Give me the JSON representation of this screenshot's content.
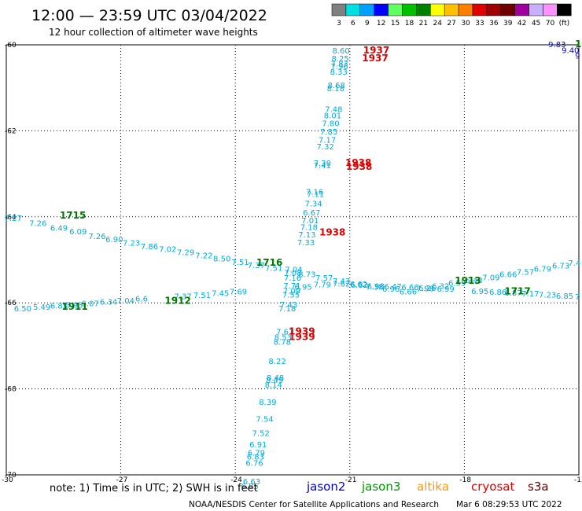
{
  "header": {
    "title": "12:00 — 23:59 UTC 03/04/2022",
    "subtitle": "12 hour collection of altimeter wave heights"
  },
  "colorbar": {
    "labels": [
      "3",
      "6",
      "9",
      "12",
      "15",
      "18",
      "21",
      "24",
      "27",
      "30",
      "33",
      "36",
      "39",
      "42",
      "45",
      "70",
      "(ft)"
    ],
    "colors": [
      "#808080",
      "#00e0e0",
      "#00a0ff",
      "#0000ff",
      "#60ff60",
      "#00c000",
      "#008000",
      "#ffff00",
      "#ffc000",
      "#ff8000",
      "#e00000",
      "#a00000",
      "#700000",
      "#a000a0",
      "#c8b0ff",
      "#ff90ff",
      "#000000"
    ]
  },
  "legend": [
    {
      "label": "jason2",
      "color": "#0000cc"
    },
    {
      "label": "jason3",
      "color": "#009900"
    },
    {
      "label": "altika",
      "color": "#ff9900"
    },
    {
      "label": "cryosat",
      "color": "#dd0000"
    },
    {
      "label": "s3a",
      "color": "#660000"
    }
  ],
  "note": "note: 1) Time is in UTC; 2) SWH is in feet",
  "footer": {
    "credit": "NOAA/NESDIS Center for Satellite Applications and Research",
    "timestamp": "Mar  6 08:29:53 UTC 2022"
  },
  "chart_data": {
    "type": "scatter",
    "xlim": [
      -30,
      -15
    ],
    "ylim": [
      -70,
      -60
    ],
    "x_ticks": [
      -30,
      -27,
      -24,
      -21,
      -18,
      -15
    ],
    "x_tick_labels": [
      "-30",
      "-27",
      "-24",
      "-21",
      "-18",
      "-15"
    ],
    "y_ticks": [
      -60,
      -62,
      -64,
      -66,
      -68,
      -70
    ],
    "y_tick_labels": [
      "-60",
      "-62",
      "-64",
      "-66",
      "-68",
      "-70"
    ],
    "grid": true,
    "colors": {
      "cyan": "#00aadd",
      "blue": "#0000cc",
      "green": "#007700",
      "red": "#dd0000"
    },
    "values": [
      {
        "lon": -21.46,
        "lat": -60.13,
        "t": "8.60",
        "c": "cyan"
      },
      {
        "lon": -21.48,
        "lat": -60.31,
        "t": "8.25",
        "c": "cyan"
      },
      {
        "lon": -21.5,
        "lat": -60.43,
        "t": "7.83",
        "c": "cyan"
      },
      {
        "lon": -21.5,
        "lat": -60.49,
        "t": "7.96",
        "c": "cyan"
      },
      {
        "lon": -21.52,
        "lat": -60.62,
        "t": "8.33",
        "c": "cyan"
      },
      {
        "lon": -21.58,
        "lat": -60.93,
        "t": "8.68",
        "c": "cyan"
      },
      {
        "lon": -21.6,
        "lat": -61.01,
        "t": "8.18",
        "c": "cyan"
      },
      {
        "lon": -21.65,
        "lat": -61.49,
        "t": "7.48",
        "c": "cyan"
      },
      {
        "lon": -21.68,
        "lat": -61.64,
        "t": "8.01",
        "c": "cyan"
      },
      {
        "lon": -21.73,
        "lat": -61.82,
        "t": "7.80",
        "c": "cyan"
      },
      {
        "lon": -21.78,
        "lat": -62.01,
        "t": "7.85",
        "c": "cyan"
      },
      {
        "lon": -21.82,
        "lat": -62.2,
        "t": "7.17",
        "c": "cyan"
      },
      {
        "lon": -21.87,
        "lat": -62.36,
        "t": "7.32",
        "c": "cyan"
      },
      {
        "lon": -21.95,
        "lat": -62.74,
        "t": "7.30",
        "c": "cyan"
      },
      {
        "lon": -21.95,
        "lat": -62.8,
        "t": "7.41",
        "c": "cyan"
      },
      {
        "lon": -22.15,
        "lat": -63.41,
        "t": "7.16",
        "c": "cyan"
      },
      {
        "lon": -22.13,
        "lat": -63.46,
        "t": "7.11",
        "c": "cyan"
      },
      {
        "lon": -22.18,
        "lat": -63.68,
        "t": "7.34",
        "c": "cyan"
      },
      {
        "lon": -22.23,
        "lat": -63.89,
        "t": "6.67",
        "c": "cyan"
      },
      {
        "lon": -22.27,
        "lat": -64.08,
        "t": "7.01",
        "c": "cyan"
      },
      {
        "lon": -22.3,
        "lat": -64.23,
        "t": "7.18",
        "c": "cyan"
      },
      {
        "lon": -22.35,
        "lat": -64.41,
        "t": "7.13",
        "c": "cyan"
      },
      {
        "lon": -22.38,
        "lat": -64.59,
        "t": "7.33",
        "c": "cyan"
      },
      {
        "lon": -22.7,
        "lat": -65.22,
        "t": "7.04",
        "c": "cyan"
      },
      {
        "lon": -22.72,
        "lat": -65.29,
        "t": "7.08",
        "c": "cyan"
      },
      {
        "lon": -22.73,
        "lat": -65.41,
        "t": "7.16",
        "c": "cyan"
      },
      {
        "lon": -22.74,
        "lat": -65.59,
        "t": "7.71",
        "c": "cyan"
      },
      {
        "lon": -22.75,
        "lat": -65.71,
        "t": "7.09",
        "c": "cyan"
      },
      {
        "lon": -22.77,
        "lat": -65.8,
        "t": "7.55",
        "c": "cyan"
      },
      {
        "lon": -22.83,
        "lat": -66.03,
        "t": "7.43",
        "c": "cyan"
      },
      {
        "lon": -22.87,
        "lat": -66.12,
        "t": "7.18",
        "c": "cyan"
      },
      {
        "lon": -22.93,
        "lat": -66.66,
        "t": "7.61",
        "c": "cyan"
      },
      {
        "lon": -22.98,
        "lat": -66.79,
        "t": "8.53",
        "c": "cyan"
      },
      {
        "lon": -23.0,
        "lat": -66.9,
        "t": "8.78",
        "c": "cyan"
      },
      {
        "lon": -23.13,
        "lat": -67.35,
        "t": "8.22",
        "c": "cyan"
      },
      {
        "lon": -23.18,
        "lat": -67.73,
        "t": "8.48",
        "c": "cyan"
      },
      {
        "lon": -23.2,
        "lat": -67.79,
        "t": "8.49",
        "c": "cyan"
      },
      {
        "lon": -23.23,
        "lat": -67.9,
        "t": "8.14",
        "c": "cyan"
      },
      {
        "lon": -23.38,
        "lat": -68.3,
        "t": "8.39",
        "c": "cyan"
      },
      {
        "lon": -23.46,
        "lat": -68.69,
        "t": "7.54",
        "c": "cyan"
      },
      {
        "lon": -23.56,
        "lat": -69.02,
        "t": "7.52",
        "c": "cyan"
      },
      {
        "lon": -23.63,
        "lat": -69.29,
        "t": "6.91",
        "c": "cyan"
      },
      {
        "lon": -23.68,
        "lat": -69.48,
        "t": "6.79",
        "c": "cyan"
      },
      {
        "lon": -23.7,
        "lat": -69.57,
        "t": "6.83",
        "c": "cyan"
      },
      {
        "lon": -23.73,
        "lat": -69.72,
        "t": "6.76",
        "c": "cyan"
      },
      {
        "lon": -23.8,
        "lat": -70.15,
        "t": "6.63",
        "c": "cyan"
      },
      {
        "lon": -23.85,
        "lat": -70.26,
        "t": "6.85",
        "c": "cyan"
      },
      {
        "lon": -30.05,
        "lat": -64.02,
        "t": "7.27",
        "c": "cyan"
      },
      {
        "lon": -29.4,
        "lat": -64.14,
        "t": "7.26",
        "c": "cyan"
      },
      {
        "lon": -28.85,
        "lat": -64.25,
        "t": "6.49",
        "c": "cyan"
      },
      {
        "lon": -28.35,
        "lat": -64.33,
        "t": "6.09",
        "c": "cyan"
      },
      {
        "lon": -27.85,
        "lat": -64.44,
        "t": "7.26",
        "c": "cyan"
      },
      {
        "lon": -27.4,
        "lat": -64.52,
        "t": "6.90",
        "c": "cyan"
      },
      {
        "lon": -26.95,
        "lat": -64.6,
        "t": "7.23",
        "c": "cyan"
      },
      {
        "lon": -26.48,
        "lat": -64.68,
        "t": "7.86",
        "c": "cyan"
      },
      {
        "lon": -26.0,
        "lat": -64.74,
        "t": "7.02",
        "c": "cyan"
      },
      {
        "lon": -25.53,
        "lat": -64.82,
        "t": "7.29",
        "c": "cyan"
      },
      {
        "lon": -25.05,
        "lat": -64.89,
        "t": "7.22",
        "c": "cyan"
      },
      {
        "lon": -24.58,
        "lat": -64.96,
        "t": "8.50",
        "c": "cyan"
      },
      {
        "lon": -24.1,
        "lat": -65.05,
        "t": "7.51",
        "c": "cyan"
      },
      {
        "lon": -23.68,
        "lat": -65.12,
        "t": "7.37",
        "c": "cyan"
      },
      {
        "lon": -23.22,
        "lat": -65.18,
        "t": "7.51",
        "c": "cyan"
      },
      {
        "lon": -22.35,
        "lat": -65.33,
        "t": "8.73",
        "c": "cyan"
      },
      {
        "lon": -21.9,
        "lat": -65.41,
        "t": "7.57",
        "c": "cyan"
      },
      {
        "lon": -21.45,
        "lat": -65.48,
        "t": "7.43",
        "c": "cyan"
      },
      {
        "lon": -21.0,
        "lat": -65.56,
        "t": "6.62",
        "c": "cyan"
      },
      {
        "lon": -20.58,
        "lat": -65.62,
        "t": "7.38",
        "c": "cyan"
      },
      {
        "lon": -20.15,
        "lat": -65.67,
        "t": "6.96",
        "c": "cyan"
      },
      {
        "lon": -19.7,
        "lat": -65.73,
        "t": "6.66",
        "c": "cyan"
      },
      {
        "lon": -19.25,
        "lat": -65.66,
        "t": "7.98",
        "c": "cyan"
      },
      {
        "lon": -18.85,
        "lat": -65.6,
        "t": "6.32",
        "c": "cyan"
      },
      {
        "lon": -18.42,
        "lat": -65.53,
        "t": "6.59",
        "c": "cyan"
      },
      {
        "lon": -17.98,
        "lat": -65.47,
        "t": "6.48",
        "c": "cyan"
      },
      {
        "lon": -17.53,
        "lat": -65.4,
        "t": "7.09",
        "c": "cyan"
      },
      {
        "lon": -17.08,
        "lat": -65.33,
        "t": "6.66",
        "c": "cyan"
      },
      {
        "lon": -16.63,
        "lat": -65.27,
        "t": "7.57",
        "c": "cyan"
      },
      {
        "lon": -16.18,
        "lat": -65.2,
        "t": "6.79",
        "c": "cyan"
      },
      {
        "lon": -15.7,
        "lat": -65.13,
        "t": "6.73",
        "c": "cyan"
      },
      {
        "lon": -15.28,
        "lat": -65.06,
        "t": "7.4",
        "c": "cyan"
      },
      {
        "lon": -29.8,
        "lat": -66.12,
        "t": "6.50",
        "c": "cyan"
      },
      {
        "lon": -29.3,
        "lat": -66.09,
        "t": "5.49",
        "c": "cyan"
      },
      {
        "lon": -28.85,
        "lat": -66.06,
        "t": "6.85",
        "c": "cyan"
      },
      {
        "lon": -28.45,
        "lat": -66.04,
        "t": "5.93",
        "c": "cyan"
      },
      {
        "lon": -28.03,
        "lat": -66.01,
        "t": "6.07",
        "c": "cyan"
      },
      {
        "lon": -27.55,
        "lat": -65.97,
        "t": "6.34",
        "c": "cyan"
      },
      {
        "lon": -27.1,
        "lat": -65.94,
        "t": "7.04",
        "c": "cyan"
      },
      {
        "lon": -26.62,
        "lat": -65.9,
        "t": "6.6",
        "c": "cyan"
      },
      {
        "lon": -25.6,
        "lat": -65.84,
        "t": "7.37",
        "c": "cyan"
      },
      {
        "lon": -25.1,
        "lat": -65.81,
        "t": "7.51",
        "c": "cyan"
      },
      {
        "lon": -24.62,
        "lat": -65.77,
        "t": "7.45",
        "c": "cyan"
      },
      {
        "lon": -24.15,
        "lat": -65.73,
        "t": "7.69",
        "c": "cyan"
      },
      {
        "lon": -22.45,
        "lat": -65.62,
        "t": "6.95",
        "c": "cyan"
      },
      {
        "lon": -21.95,
        "lat": -65.57,
        "t": "7.79",
        "c": "cyan"
      },
      {
        "lon": -21.45,
        "lat": -65.55,
        "t": "7.62",
        "c": "cyan"
      },
      {
        "lon": -20.98,
        "lat": -65.58,
        "t": "6.82",
        "c": "cyan"
      },
      {
        "lon": -20.55,
        "lat": -65.6,
        "t": "6.98",
        "c": "cyan"
      },
      {
        "lon": -20.1,
        "lat": -65.61,
        "t": "6.47",
        "c": "cyan"
      },
      {
        "lon": -19.65,
        "lat": -65.63,
        "t": "6.66",
        "c": "cyan"
      },
      {
        "lon": -19.2,
        "lat": -65.65,
        "t": "6.26",
        "c": "cyan"
      },
      {
        "lon": -18.72,
        "lat": -65.67,
        "t": "6.99",
        "c": "cyan"
      },
      {
        "lon": -17.82,
        "lat": -65.72,
        "t": "6.95",
        "c": "cyan"
      },
      {
        "lon": -17.35,
        "lat": -65.74,
        "t": "6.86",
        "c": "cyan"
      },
      {
        "lon": -16.95,
        "lat": -65.76,
        "t": "6.87",
        "c": "cyan"
      },
      {
        "lon": -16.5,
        "lat": -65.78,
        "t": "7.17",
        "c": "cyan"
      },
      {
        "lon": -16.05,
        "lat": -65.8,
        "t": "7.23",
        "c": "cyan"
      },
      {
        "lon": -15.6,
        "lat": -65.83,
        "t": "6.85",
        "c": "cyan"
      },
      {
        "lon": -15.1,
        "lat": -65.85,
        "t": "7",
        "c": "cyan"
      },
      {
        "lon": -15.8,
        "lat": -59.98,
        "t": "9.83",
        "c": "blue"
      },
      {
        "lon": -15.45,
        "lat": -60.12,
        "t": "9.40",
        "c": "blue"
      },
      {
        "lon": -15.1,
        "lat": -60.25,
        "t": "9",
        "c": "blue"
      }
    ],
    "passes": [
      {
        "lon": -20.65,
        "lat": -60.13,
        "t": "1937",
        "c": "red"
      },
      {
        "lon": -20.68,
        "lat": -60.31,
        "t": "1937",
        "c": "red"
      },
      {
        "lon": -21.12,
        "lat": -62.74,
        "t": "1938",
        "c": "red"
      },
      {
        "lon": -21.1,
        "lat": -62.83,
        "t": "1938",
        "c": "red"
      },
      {
        "lon": -21.8,
        "lat": -64.36,
        "t": "1938",
        "c": "red"
      },
      {
        "lon": -22.6,
        "lat": -66.66,
        "t": "1939",
        "c": "red"
      },
      {
        "lon": -22.6,
        "lat": -66.79,
        "t": "1939",
        "c": "red"
      },
      {
        "lon": -28.6,
        "lat": -63.97,
        "t": "1715",
        "c": "green"
      },
      {
        "lon": -23.45,
        "lat": -65.06,
        "t": "1716",
        "c": "green"
      },
      {
        "lon": -28.55,
        "lat": -66.09,
        "t": "1911",
        "c": "green"
      },
      {
        "lon": -25.85,
        "lat": -65.95,
        "t": "1912",
        "c": "green"
      },
      {
        "lon": -18.25,
        "lat": -65.48,
        "t": "1913",
        "c": "green"
      },
      {
        "lon": -16.95,
        "lat": -65.73,
        "t": "1717",
        "c": "green"
      },
      {
        "lon": -15.1,
        "lat": -59.98,
        "t": "1",
        "c": "green"
      }
    ]
  }
}
